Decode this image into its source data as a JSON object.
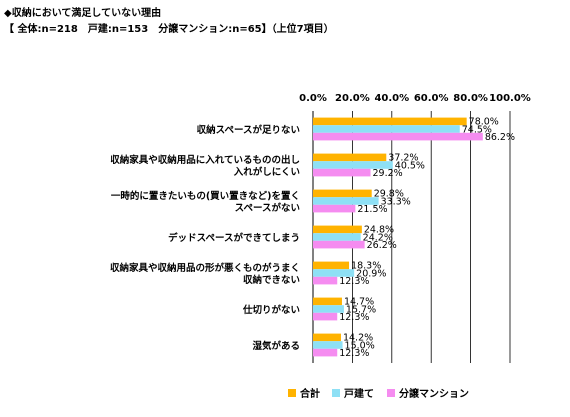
{
  "title": "◆収納において満足していない理由",
  "subtitle": "【 全体:n=218　戸建:n=153　分譲マンション:n=65】（上位7項目）",
  "chart_data": {
    "type": "bar",
    "orientation": "horizontal",
    "categories": [
      [
        "収納スペースが足りない"
      ],
      [
        "収納家具や収納用品に入れているものの出し",
        "入れがしにくい"
      ],
      [
        "一時的に置きたいもの(買い置きなど)を置く",
        "スペースがない"
      ],
      [
        "デッドスペースができてしまう"
      ],
      [
        "収納家具や収納用品の形が悪くものがうまく",
        "収納できない"
      ],
      [
        "仕切りがない"
      ],
      [
        "湿気がある"
      ]
    ],
    "series": [
      {
        "name": "合計",
        "color": "#FFB300",
        "values": [
          78.0,
          37.2,
          29.8,
          24.8,
          18.3,
          14.7,
          14.2
        ],
        "labels": [
          "78.0%",
          "37.2%",
          "29.8%",
          "24.8%",
          "18.3%",
          "14.7%",
          "14.2%"
        ]
      },
      {
        "name": "戸建て",
        "color": "#8EE0F5",
        "values": [
          74.5,
          40.5,
          33.3,
          24.2,
          20.9,
          15.7,
          15.0
        ],
        "labels": [
          "74.5%",
          "40.5%",
          "33.3%",
          "24.2%",
          "20.9%",
          "15.7%",
          "15.0%"
        ]
      },
      {
        "name": "分譲マンション",
        "color": "#F58CF0",
        "values": [
          86.2,
          29.2,
          21.5,
          26.2,
          12.3,
          12.3,
          12.3
        ],
        "labels": [
          "86.2%",
          "29.2%",
          "21.5%",
          "26.2%",
          "12.3%",
          "12.3%",
          "12.3%"
        ]
      }
    ],
    "xlim": [
      0,
      100
    ],
    "ticks": [
      "0.0%",
      "20.0%",
      "40.0%",
      "60.0%",
      "80.0%",
      "100.0%"
    ],
    "grid": true,
    "legend_position": "bottom"
  }
}
